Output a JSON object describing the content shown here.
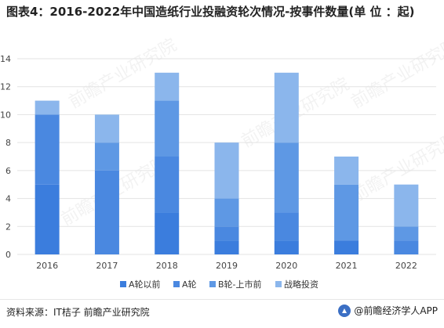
{
  "title": "图表4：2016-2022年中国造纸行业投融资轮次情况-按事件数量(单 位 ：起)",
  "source": "资料来源：IT桔子 前瞻产业研究院",
  "brand": "@前瞻经济学人APP",
  "watermark": "前瞻产业研究院",
  "chart_data": {
    "type": "bar",
    "stacked": true,
    "categories": [
      "2016",
      "2017",
      "2018",
      "2019",
      "2020",
      "2021",
      "2022"
    ],
    "series": [
      {
        "name": "A轮以前",
        "color": "#3b7ddd",
        "values": [
          5,
          0,
          3,
          1,
          1,
          1,
          0
        ]
      },
      {
        "name": "A轮",
        "color": "#4a88e0",
        "values": [
          5,
          6,
          4,
          1,
          2,
          0,
          1
        ]
      },
      {
        "name": "B轮-上市前",
        "color": "#5e98e4",
        "values": [
          0,
          2,
          4,
          2,
          5,
          4,
          1
        ]
      },
      {
        "name": "战略投资",
        "color": "#8bb6ec",
        "values": [
          1,
          2,
          2,
          4,
          5,
          2,
          3
        ]
      }
    ],
    "ylim": [
      0,
      14
    ],
    "yticks": [
      0,
      2,
      4,
      6,
      8,
      10,
      12,
      14
    ],
    "grid": true,
    "legend": "bottom"
  }
}
